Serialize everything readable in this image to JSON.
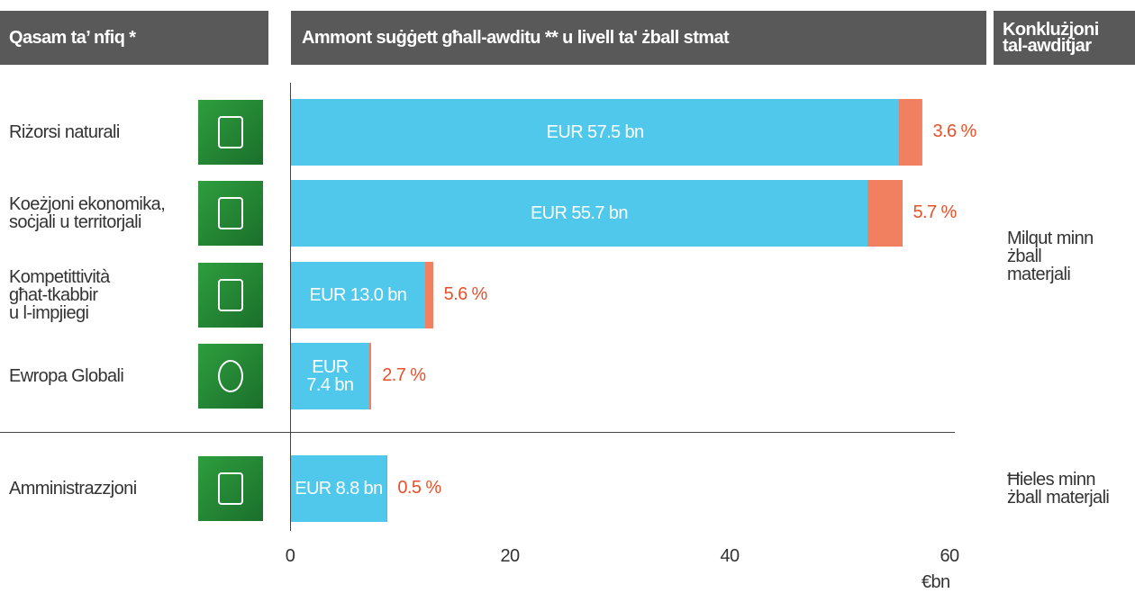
{
  "chart_data": {
    "type": "bar",
    "headers": [
      "Qasam ta’ nfiq *",
      "Ammont suġġett għall-awditu ** u livell ta' żball stmat",
      "Konklużjoni\ntal-awditjar"
    ],
    "categories": [
      "Riżorsi naturali",
      "Koeżjoni ekonomika,\nsoċjali u territorjali",
      "Kompetittività\ngħat-tkabbir\nu l-impjiegi",
      "Ewropa Globali",
      "Amministrazzjoni"
    ],
    "values": [
      57.5,
      55.7,
      13.0,
      7.4,
      8.8
    ],
    "value_labels": [
      "EUR 57.5 bn",
      "EUR 55.7 bn",
      "EUR 13.0 bn",
      "EUR\n7.4 bn",
      "EUR 8.8 bn"
    ],
    "error_rates": [
      3.6,
      5.7,
      5.6,
      2.7,
      0.5
    ],
    "error_rate_labels": [
      "3.6 %",
      "5.7 %",
      "5.6 %",
      "2.7 %",
      "0.5 %"
    ],
    "conclusions": [
      "Milqut minn\nżball\nmaterjali",
      "Ħieles minn\nżball materjali"
    ],
    "color": "#4fc8ec",
    "error_color": "#f08060",
    "xlim": [
      0,
      60
    ],
    "xticks": [
      0,
      20,
      40,
      60
    ],
    "x_label": "€bn"
  }
}
